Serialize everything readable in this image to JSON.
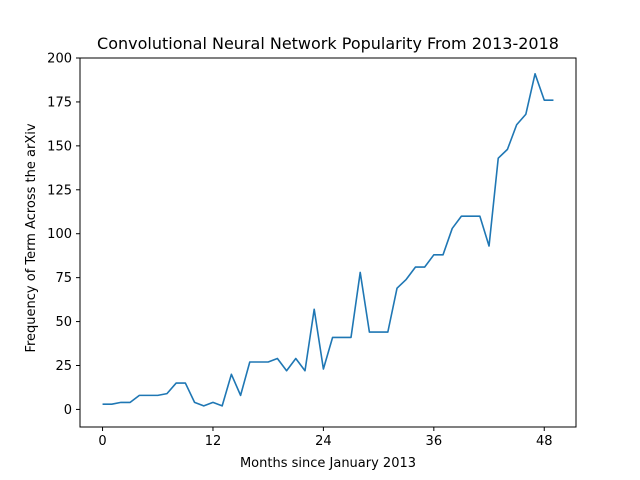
{
  "chart_data": {
    "type": "line",
    "title": "Convolutional Neural Network Popularity From 2013-2018",
    "xlabel": "Months since January 2013",
    "ylabel": "Frequency of Term Across the arXiv",
    "xlim": [
      -2.45,
      51.45
    ],
    "ylim": [
      -10,
      200
    ],
    "xticks": [
      0,
      12,
      24,
      36,
      48
    ],
    "yticks": [
      0,
      25,
      50,
      75,
      100,
      125,
      150,
      175,
      200
    ],
    "grid": false,
    "series_color": "#1f77b4",
    "series": [
      {
        "x": [
          0,
          1,
          2,
          3,
          4,
          5,
          6,
          7,
          8,
          9,
          10,
          11,
          12,
          13,
          14,
          15,
          16,
          17,
          18,
          19,
          20,
          21,
          22,
          23,
          24,
          25,
          26,
          27,
          28,
          29,
          30,
          31,
          32,
          33,
          34,
          35,
          36,
          37,
          38,
          39,
          40,
          41,
          42,
          43,
          44,
          45,
          46,
          47,
          48,
          49
        ],
        "values": [
          3,
          3,
          4,
          4,
          8,
          8,
          8,
          9,
          15,
          15,
          4,
          2,
          4,
          2,
          20,
          8,
          27,
          27,
          27,
          29,
          22,
          29,
          22,
          57,
          23,
          41,
          41,
          41,
          78,
          44,
          44,
          44,
          69,
          74,
          81,
          81,
          88,
          88,
          103,
          110,
          110,
          110,
          93,
          143,
          148,
          162,
          168,
          191,
          176,
          176
        ]
      }
    ]
  }
}
